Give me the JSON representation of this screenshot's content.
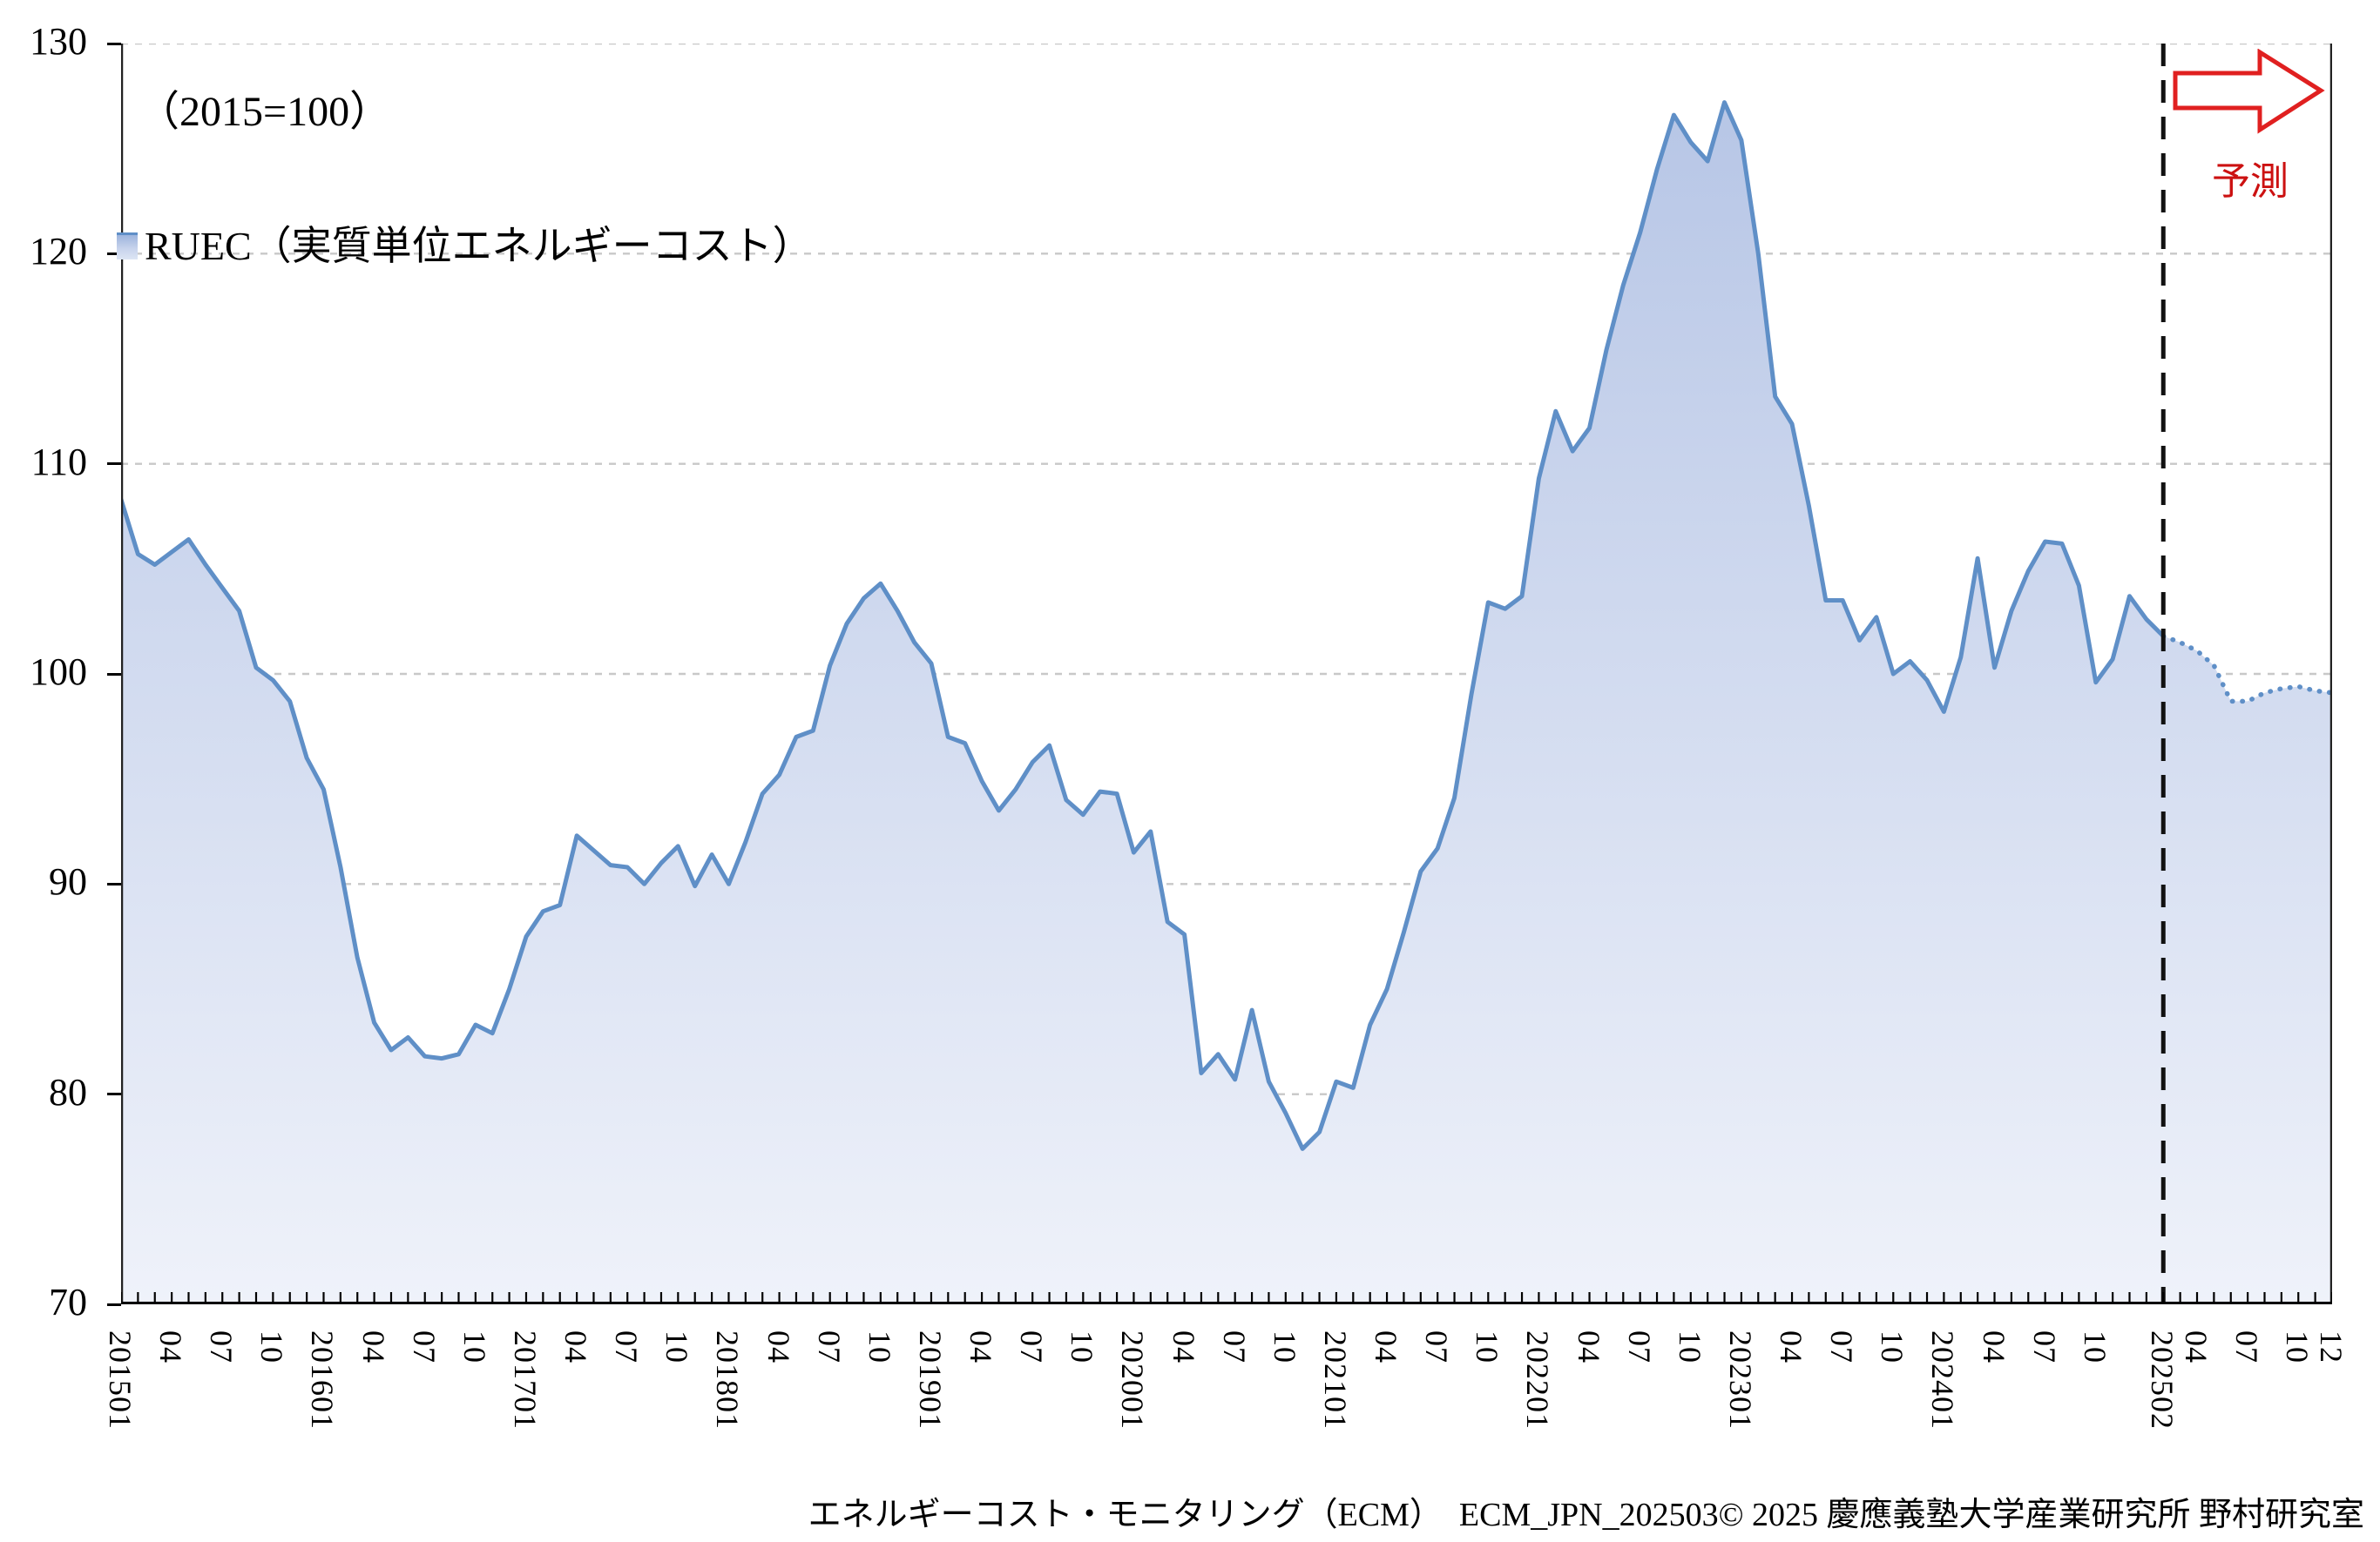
{
  "header": {
    "index_note": "（2015=100）",
    "legend_label": "RUEC（実質単位エネルギーコスト）",
    "forecast_label": "予測"
  },
  "footer": {
    "credit": "エネルギーコスト・モニタリング（ECM）　ECM_JPN_202503© 2025 慶應義塾大学産業研究所 野村研究室"
  },
  "colors": {
    "line": "#5f8fc7",
    "fill_top": "#b7c6e6",
    "fill_bottom": "#eff2fa",
    "grid": "#c8c8c8",
    "axis": "#000000",
    "forecast_red": "#dd1f1f"
  },
  "chart_data": {
    "type": "area",
    "title": "RUEC（実質単位エネルギーコスト）",
    "subtitle": "（2015=100）",
    "ylabel": "",
    "xlabel": "",
    "ylim": [
      70,
      130
    ],
    "ytick_interval": 10,
    "ytick_labels": [
      "70",
      "80",
      "90",
      "100",
      "110",
      "120",
      "130"
    ],
    "grid": "horizontal-dashed",
    "legend_position": "top-left",
    "frequency": "monthly",
    "x_start": "2015-01",
    "x_end": "2025-12",
    "forecast_boundary": "2025-02",
    "forecast_boundary_index": 121,
    "forecast_start_index": 121,
    "forecast_line_style": "dotted",
    "x_tick_label_indices": [
      0,
      3,
      6,
      9,
      12,
      15,
      18,
      21,
      24,
      27,
      30,
      33,
      36,
      39,
      42,
      45,
      48,
      51,
      54,
      57,
      60,
      63,
      66,
      69,
      72,
      75,
      78,
      81,
      84,
      87,
      90,
      93,
      96,
      99,
      102,
      105,
      108,
      111,
      114,
      117,
      121,
      123,
      126,
      129,
      131
    ],
    "x_tick_labels": [
      "201501",
      "04",
      "07",
      "10",
      "201601",
      "04",
      "07",
      "10",
      "201701",
      "04",
      "07",
      "10",
      "201801",
      "04",
      "07",
      "10",
      "201901",
      "04",
      "07",
      "10",
      "202001",
      "04",
      "07",
      "10",
      "202101",
      "04",
      "07",
      "10",
      "202201",
      "04",
      "07",
      "10",
      "202301",
      "04",
      "07",
      "10",
      "202401",
      "04",
      "07",
      "10",
      "202502",
      "04",
      "07",
      "10",
      "12"
    ],
    "series": [
      {
        "name": "RUEC",
        "values": [
          108.3,
          105.7,
          105.2,
          105.8,
          106.4,
          105.2,
          104.1,
          103.0,
          100.3,
          99.7,
          98.7,
          96.0,
          94.5,
          90.8,
          86.5,
          83.4,
          82.1,
          82.7,
          81.8,
          81.7,
          81.9,
          83.3,
          82.9,
          85.0,
          87.5,
          88.7,
          89.0,
          92.3,
          91.6,
          90.9,
          90.8,
          90.0,
          91.0,
          91.8,
          89.9,
          91.4,
          90.0,
          92.0,
          94.3,
          95.2,
          97.0,
          97.3,
          100.4,
          102.4,
          103.6,
          104.3,
          103.0,
          101.5,
          100.5,
          97.0,
          96.7,
          94.9,
          93.5,
          94.5,
          95.8,
          96.6,
          94.0,
          93.3,
          94.4,
          94.3,
          91.5,
          92.5,
          88.2,
          87.6,
          81.0,
          81.9,
          80.7,
          84.0,
          80.6,
          79.1,
          77.4,
          78.2,
          80.6,
          80.3,
          83.3,
          85.0,
          87.7,
          90.6,
          91.7,
          94.1,
          99.0,
          103.4,
          103.1,
          103.7,
          109.3,
          112.5,
          110.6,
          111.7,
          115.4,
          118.5,
          121.0,
          124.0,
          126.6,
          125.3,
          124.4,
          127.2,
          125.4,
          120.0,
          113.2,
          111.9,
          108.0,
          103.5,
          103.5,
          101.6,
          102.7,
          100.0,
          100.6,
          99.7,
          98.2,
          100.8,
          105.5,
          100.3,
          103.0,
          104.9,
          106.3,
          106.2,
          104.2,
          99.6,
          100.7,
          103.7,
          102.6,
          101.8,
          101.5,
          101.1,
          100.4,
          98.7,
          98.7,
          99.1,
          99.3,
          99.4,
          99.2,
          99.1
        ]
      }
    ]
  }
}
